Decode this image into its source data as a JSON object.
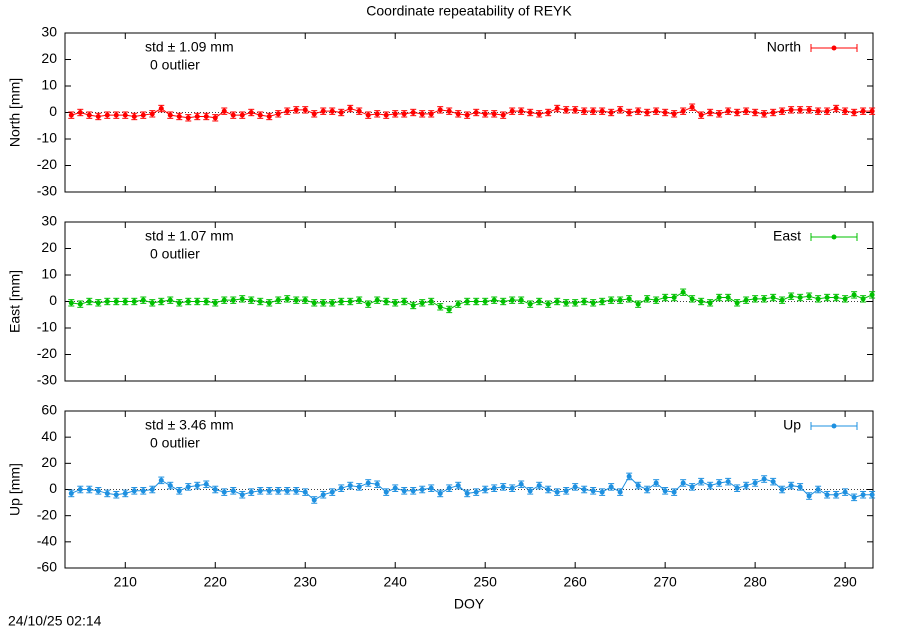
{
  "title": "Coordinate repeatability of REYK",
  "timestamp": "24/10/25 02:14",
  "chart_data": [
    {
      "type": "errorbar",
      "ylabel": "North [mm]",
      "annotations": [
        "std ± 1.09 mm",
        "0 outlier"
      ],
      "xlim": [
        203.3,
        293.1
      ],
      "xticks": [
        210,
        220,
        230,
        240,
        250,
        260,
        270,
        280,
        290
      ],
      "xtick_labels": false,
      "ylim": [
        -30,
        30
      ],
      "yticks": [
        -30,
        -20,
        -10,
        0,
        10,
        20,
        30
      ],
      "error": 1.2,
      "x": [
        204,
        205,
        206,
        207,
        208,
        209,
        210,
        211,
        212,
        213,
        214,
        215,
        216,
        217,
        218,
        219,
        220,
        221,
        222,
        223,
        224,
        225,
        226,
        227,
        228,
        229,
        230,
        231,
        232,
        233,
        234,
        235,
        236,
        237,
        238,
        239,
        240,
        241,
        242,
        243,
        244,
        245,
        246,
        247,
        248,
        249,
        250,
        251,
        252,
        253,
        254,
        255,
        256,
        257,
        258,
        259,
        260,
        261,
        262,
        263,
        264,
        265,
        266,
        267,
        268,
        269,
        270,
        271,
        272,
        273,
        274,
        275,
        276,
        277,
        278,
        279,
        280,
        281,
        282,
        283,
        284,
        285,
        286,
        287,
        288,
        289,
        290,
        291,
        292,
        293
      ],
      "series": [
        {
          "name": "North",
          "color": "#ff0000",
          "values": [
            -1,
            0,
            -1,
            -1.5,
            -1,
            -1,
            -1,
            -1.5,
            -1,
            -0.5,
            1.5,
            -1,
            -1.5,
            -2,
            -1.5,
            -1.5,
            -2,
            0.5,
            -1,
            -1,
            0,
            -1,
            -1.5,
            -0.5,
            0.5,
            1,
            1,
            -0.5,
            0.5,
            0.5,
            0,
            1.5,
            0.5,
            -1,
            -0.5,
            -1,
            -0.5,
            -0.5,
            0,
            -0.5,
            -0.5,
            1,
            0.5,
            -0.5,
            -1,
            0,
            -0.5,
            -0.5,
            -1,
            0.5,
            0.5,
            0,
            -0.5,
            0,
            1.5,
            1,
            1,
            0.5,
            0.5,
            0.5,
            0,
            1,
            0,
            0.5,
            0,
            0.5,
            0,
            -0.5,
            0.5,
            2,
            -1,
            0,
            -0.5,
            0.5,
            0,
            0.5,
            0,
            -0.5,
            0,
            0.5,
            1,
            1,
            1,
            0.5,
            0.5,
            1.5,
            0.5,
            0,
            0.5,
            0.5
          ]
        }
      ]
    },
    {
      "type": "errorbar",
      "ylabel": "East [mm]",
      "annotations": [
        "std ± 1.07 mm",
        "0 outlier"
      ],
      "xlim": [
        203.3,
        293.1
      ],
      "xticks": [
        210,
        220,
        230,
        240,
        250,
        260,
        270,
        280,
        290
      ],
      "xtick_labels": false,
      "ylim": [
        -30,
        30
      ],
      "yticks": [
        -30,
        -20,
        -10,
        0,
        10,
        20,
        30
      ],
      "error": 1.2,
      "x": [
        204,
        205,
        206,
        207,
        208,
        209,
        210,
        211,
        212,
        213,
        214,
        215,
        216,
        217,
        218,
        219,
        220,
        221,
        222,
        223,
        224,
        225,
        226,
        227,
        228,
        229,
        230,
        231,
        232,
        233,
        234,
        235,
        236,
        237,
        238,
        239,
        240,
        241,
        242,
        243,
        244,
        245,
        246,
        247,
        248,
        249,
        250,
        251,
        252,
        253,
        254,
        255,
        256,
        257,
        258,
        259,
        260,
        261,
        262,
        263,
        264,
        265,
        266,
        267,
        268,
        269,
        270,
        271,
        272,
        273,
        274,
        275,
        276,
        277,
        278,
        279,
        280,
        281,
        282,
        283,
        284,
        285,
        286,
        287,
        288,
        289,
        290,
        291,
        292,
        293
      ],
      "series": [
        {
          "name": "East",
          "color": "#00c000",
          "values": [
            -0.5,
            -1,
            0,
            -0.5,
            0,
            0,
            0,
            0,
            0.5,
            -0.5,
            0,
            0.5,
            -0.5,
            0,
            0,
            0,
            -0.5,
            0.5,
            0.5,
            1,
            0.5,
            0,
            -0.5,
            0.5,
            1,
            0.5,
            0.5,
            -0.5,
            -0.5,
            -0.5,
            0,
            0,
            0.5,
            -1,
            0.5,
            0,
            -0.5,
            0,
            -1.5,
            -0.5,
            0,
            -2,
            -3,
            -1,
            0,
            0,
            0,
            0.5,
            0,
            0.5,
            0.5,
            -1,
            0,
            -1,
            0,
            -0.5,
            -0.5,
            0,
            -0.5,
            0,
            0.5,
            0.5,
            1,
            -1,
            1,
            0.5,
            1.5,
            1.5,
            3.5,
            1,
            0,
            -0.5,
            1.5,
            1.5,
            -0.5,
            0.5,
            1,
            1,
            1.5,
            0.5,
            2,
            1.5,
            2,
            1,
            1.5,
            1.5,
            1,
            2.5,
            1,
            2.5
          ]
        }
      ]
    },
    {
      "type": "errorbar",
      "ylabel": "Up [mm]",
      "xlabel": "DOY",
      "annotations": [
        "std ± 3.46 mm",
        "0 outlier"
      ],
      "xlim": [
        203.3,
        293.1
      ],
      "xticks": [
        210,
        220,
        230,
        240,
        250,
        260,
        270,
        280,
        290
      ],
      "ylim": [
        -60,
        60
      ],
      "yticks": [
        -60,
        -40,
        -20,
        0,
        20,
        40,
        60
      ],
      "error": 2.5,
      "x": [
        204,
        205,
        206,
        207,
        208,
        209,
        210,
        211,
        212,
        213,
        214,
        215,
        216,
        217,
        218,
        219,
        220,
        221,
        222,
        223,
        224,
        225,
        226,
        227,
        228,
        229,
        230,
        231,
        232,
        233,
        234,
        235,
        236,
        237,
        238,
        239,
        240,
        241,
        242,
        243,
        244,
        245,
        246,
        247,
        248,
        249,
        250,
        251,
        252,
        253,
        254,
        255,
        256,
        257,
        258,
        259,
        260,
        261,
        262,
        263,
        264,
        265,
        266,
        267,
        268,
        269,
        270,
        271,
        272,
        273,
        274,
        275,
        276,
        277,
        278,
        279,
        280,
        281,
        282,
        283,
        284,
        285,
        286,
        287,
        288,
        289,
        290,
        291,
        292,
        293
      ],
      "series": [
        {
          "name": "Up",
          "color": "#1e90e0",
          "values": [
            -3,
            0,
            0,
            -1,
            -3,
            -4,
            -3,
            -1,
            -1,
            0,
            7,
            3,
            -1,
            2,
            3,
            4,
            0,
            -2,
            -1,
            -4,
            -2,
            -1,
            -1,
            -1,
            -1,
            -1,
            -2,
            -8,
            -4,
            -2,
            1,
            3,
            2,
            5,
            4,
            -2,
            1,
            -1,
            -1,
            0,
            1,
            -3,
            1,
            3,
            -3,
            -2,
            0,
            1,
            2,
            1,
            4,
            -1,
            3,
            0,
            -2,
            -1,
            2,
            0,
            -1,
            -2,
            2,
            -2,
            10,
            3,
            0,
            5,
            -1,
            -2,
            5,
            2,
            6,
            3,
            5,
            6,
            1,
            3,
            5,
            8,
            6,
            0,
            3,
            2,
            -5,
            0,
            -4,
            -4,
            -2,
            -6,
            -4,
            -4
          ]
        }
      ]
    }
  ]
}
